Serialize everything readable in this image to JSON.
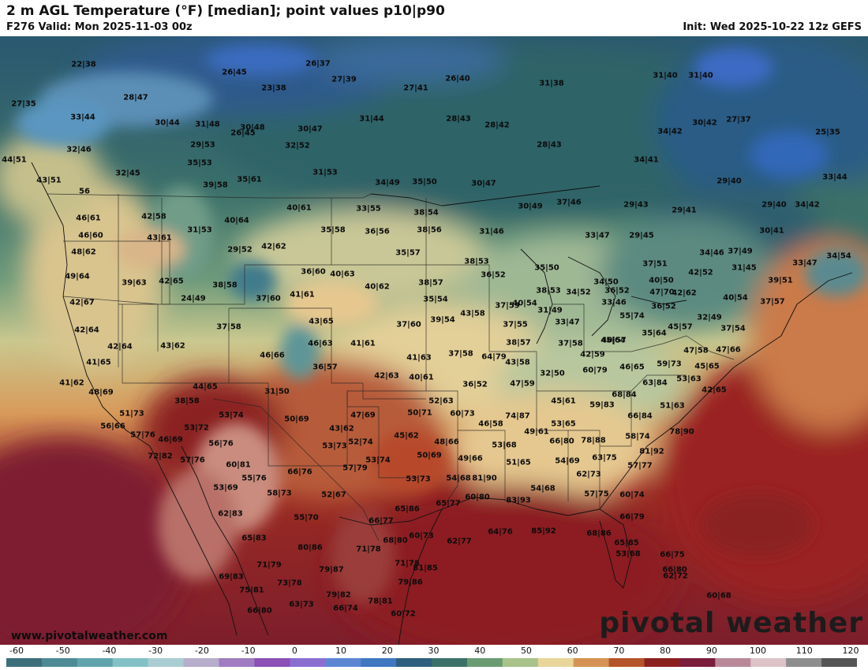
{
  "header": {
    "title": "2 m AGL Temperature (°F) [median]; point values p10|p90",
    "valid": "F276 Valid: Mon 2025-11-03 00z",
    "init": "Init: Wed 2025-10-22 12z GEFS"
  },
  "watermark_url": "www.pivotalweather.com",
  "brand": "pivotal weather",
  "colorbar": {
    "ticks": [
      "-60",
      "-50",
      "-40",
      "-30",
      "-20",
      "-10",
      "0",
      "10",
      "20",
      "30",
      "40",
      "50",
      "60",
      "70",
      "80",
      "90",
      "100",
      "110",
      "120"
    ],
    "colors": [
      "#3d6f7b",
      "#4e8a96",
      "#5fa4ad",
      "#84c1c6",
      "#aacdd3",
      "#b6aecb",
      "#a07cc0",
      "#8b4fb5",
      "#8a6fd0",
      "#5d87d4",
      "#3f78c0",
      "#2f5f7f",
      "#3a7068",
      "#6b9b73",
      "#a8c28a",
      "#e7d59a",
      "#d49355",
      "#b5542a",
      "#8b2020",
      "#7a1e3c",
      "#b9899a",
      "#dcc3c8",
      "#8e8e8e",
      "#555555"
    ]
  },
  "points": [
    {
      "text": "22|38"
    },
    {
      "text": "26|45"
    },
    {
      "text": "26|37"
    },
    {
      "text": "27|39"
    },
    {
      "text": "26|40"
    },
    {
      "text": "31|38"
    },
    {
      "text": "31|40"
    },
    {
      "text": "31|40"
    },
    {
      "text": "27|35"
    },
    {
      "text": "28|47"
    },
    {
      "text": "23|38"
    },
    {
      "text": "27|41"
    },
    {
      "text": "33|44"
    },
    {
      "text": "30|44"
    },
    {
      "text": "31|48"
    },
    {
      "text": "30|48"
    },
    {
      "text": "30|47"
    },
    {
      "text": "31|44"
    },
    {
      "text": "28|43"
    },
    {
      "text": "28|42"
    },
    {
      "text": "30|42"
    },
    {
      "text": "27|37"
    },
    {
      "text": "34|42"
    },
    {
      "text": "25|35"
    },
    {
      "text": "32|46"
    },
    {
      "text": "29|53"
    },
    {
      "text": "32|52"
    },
    {
      "text": "26|45"
    },
    {
      "text": "28|43"
    },
    {
      "text": "44|51"
    },
    {
      "text": "35|53"
    },
    {
      "text": "34|41"
    },
    {
      "text": "32|45"
    },
    {
      "text": "31|53"
    },
    {
      "text": "43|51"
    },
    {
      "text": "39|58"
    },
    {
      "text": "35|61"
    },
    {
      "text": "34|49"
    },
    {
      "text": "35|50"
    },
    {
      "text": "30|47"
    },
    {
      "text": "29|40"
    },
    {
      "text": "33|44"
    },
    {
      "text": "56"
    },
    {
      "text": "40|61"
    },
    {
      "text": "33|55"
    },
    {
      "text": "38|54"
    },
    {
      "text": "30|49"
    },
    {
      "text": "37|46"
    },
    {
      "text": "29|43"
    },
    {
      "text": "29|41"
    },
    {
      "text": "29|40"
    },
    {
      "text": "34|42"
    },
    {
      "text": "46|61"
    },
    {
      "text": "42|58"
    },
    {
      "text": "40|64"
    },
    {
      "text": "35|58"
    },
    {
      "text": "36|56"
    },
    {
      "text": "38|56"
    },
    {
      "text": "31|46"
    },
    {
      "text": "30|41"
    },
    {
      "text": "46|60"
    },
    {
      "text": "43|61"
    },
    {
      "text": "31|53"
    },
    {
      "text": "33|47"
    },
    {
      "text": "29|45"
    },
    {
      "text": "48|62"
    },
    {
      "text": "29|52"
    },
    {
      "text": "42|62"
    },
    {
      "text": "35|57"
    },
    {
      "text": "34|46"
    },
    {
      "text": "37|49"
    },
    {
      "text": "34|54"
    },
    {
      "text": "33|47"
    },
    {
      "text": "38|53"
    },
    {
      "text": "37|51"
    },
    {
      "text": "42|52"
    },
    {
      "text": "31|45"
    },
    {
      "text": "49|64"
    },
    {
      "text": "39|63"
    },
    {
      "text": "42|65"
    },
    {
      "text": "36|60"
    },
    {
      "text": "40|63"
    },
    {
      "text": "35|50"
    },
    {
      "text": "36|52"
    },
    {
      "text": "40|50"
    },
    {
      "text": "39|51"
    },
    {
      "text": "38|58"
    },
    {
      "text": "40|62"
    },
    {
      "text": "38|57"
    },
    {
      "text": "38|53"
    },
    {
      "text": "34|52"
    },
    {
      "text": "34|50"
    },
    {
      "text": "36|52"
    },
    {
      "text": "47|70"
    },
    {
      "text": "42|67"
    },
    {
      "text": "24|49"
    },
    {
      "text": "37|60"
    },
    {
      "text": "41|61"
    },
    {
      "text": "35|54"
    },
    {
      "text": "40|54"
    },
    {
      "text": "33|46"
    },
    {
      "text": "40|54"
    },
    {
      "text": "37|57"
    },
    {
      "text": "37|59"
    },
    {
      "text": "43|58"
    },
    {
      "text": "31|49"
    },
    {
      "text": "36|52"
    },
    {
      "text": "42|62"
    },
    {
      "text": "39|54"
    },
    {
      "text": "55|74"
    },
    {
      "text": "42|64"
    },
    {
      "text": "37|58"
    },
    {
      "text": "43|65"
    },
    {
      "text": "37|60"
    },
    {
      "text": "37|55"
    },
    {
      "text": "33|47"
    },
    {
      "text": "32|49"
    },
    {
      "text": "45|57"
    },
    {
      "text": "37|54"
    },
    {
      "text": "35|64"
    },
    {
      "text": "42|64"
    },
    {
      "text": "43|62"
    },
    {
      "text": "46|63"
    },
    {
      "text": "41|61"
    },
    {
      "text": "38|57"
    },
    {
      "text": "37|58"
    },
    {
      "text": "40|57"
    },
    {
      "text": "42|59"
    },
    {
      "text": "47|58"
    },
    {
      "text": "47|66"
    },
    {
      "text": "46|66"
    },
    {
      "text": "41|63"
    },
    {
      "text": "37|58"
    },
    {
      "text": "64|79"
    },
    {
      "text": "45|64"
    },
    {
      "text": "41|65"
    },
    {
      "text": "36|57"
    },
    {
      "text": "43|58"
    },
    {
      "text": "46|65"
    },
    {
      "text": "45|65"
    },
    {
      "text": "42|63"
    },
    {
      "text": "40|61"
    },
    {
      "text": "32|50"
    },
    {
      "text": "60|79"
    },
    {
      "text": "59|73"
    },
    {
      "text": "41|62"
    },
    {
      "text": "44|65"
    },
    {
      "text": "36|52"
    },
    {
      "text": "47|59"
    },
    {
      "text": "63|84"
    },
    {
      "text": "53|63"
    },
    {
      "text": "48|69"
    },
    {
      "text": "31|50"
    },
    {
      "text": "52|63"
    },
    {
      "text": "68|84"
    },
    {
      "text": "42|65"
    },
    {
      "text": "38|58"
    },
    {
      "text": "45|61"
    },
    {
      "text": "59|83"
    },
    {
      "text": "51|63"
    },
    {
      "text": "51|73"
    },
    {
      "text": "53|74"
    },
    {
      "text": "47|69"
    },
    {
      "text": "50|71"
    },
    {
      "text": "60|73"
    },
    {
      "text": "74|87"
    },
    {
      "text": "56|66"
    },
    {
      "text": "53|72"
    },
    {
      "text": "50|69"
    },
    {
      "text": "43|62"
    },
    {
      "text": "46|58"
    },
    {
      "text": "53|65"
    },
    {
      "text": "66|84"
    },
    {
      "text": "78|90"
    },
    {
      "text": "57|76"
    },
    {
      "text": "46|69"
    },
    {
      "text": "45|62"
    },
    {
      "text": "49|61"
    },
    {
      "text": "78|88"
    },
    {
      "text": "58|74"
    },
    {
      "text": "56|76"
    },
    {
      "text": "53|73"
    },
    {
      "text": "52|74"
    },
    {
      "text": "48|66"
    },
    {
      "text": "53|68"
    },
    {
      "text": "66|80"
    },
    {
      "text": "81|92"
    },
    {
      "text": "72|82"
    },
    {
      "text": "57|76"
    },
    {
      "text": "60|81"
    },
    {
      "text": "53|74"
    },
    {
      "text": "50|69"
    },
    {
      "text": "49|66"
    },
    {
      "text": "51|65"
    },
    {
      "text": "54|69"
    },
    {
      "text": "63|75"
    },
    {
      "text": "57|77"
    },
    {
      "text": "66|76"
    },
    {
      "text": "57|79"
    },
    {
      "text": "55|76"
    },
    {
      "text": "53|73"
    },
    {
      "text": "54|68"
    },
    {
      "text": "81|90"
    },
    {
      "text": "62|73"
    },
    {
      "text": "53|69"
    },
    {
      "text": "58|73"
    },
    {
      "text": "52|67"
    },
    {
      "text": "54|68"
    },
    {
      "text": "57|75"
    },
    {
      "text": "60|74"
    },
    {
      "text": "60|80"
    },
    {
      "text": "83|93"
    },
    {
      "text": "65|77"
    },
    {
      "text": "62|83"
    },
    {
      "text": "55|70"
    },
    {
      "text": "65|86"
    },
    {
      "text": "66|79"
    },
    {
      "text": "66|77"
    },
    {
      "text": "64|76"
    },
    {
      "text": "85|92"
    },
    {
      "text": "68|86"
    },
    {
      "text": "65|83"
    },
    {
      "text": "68|80"
    },
    {
      "text": "60|73"
    },
    {
      "text": "62|77"
    },
    {
      "text": "65|85"
    },
    {
      "text": "80|86"
    },
    {
      "text": "71|78"
    },
    {
      "text": "71|79"
    },
    {
      "text": "71|78"
    },
    {
      "text": "66|75"
    },
    {
      "text": "66|80"
    },
    {
      "text": "53|68"
    },
    {
      "text": "79|87"
    },
    {
      "text": "81|85"
    },
    {
      "text": "69|83"
    },
    {
      "text": "73|78"
    },
    {
      "text": "79|86"
    },
    {
      "text": "62|72"
    },
    {
      "text": "75|81"
    },
    {
      "text": "79|82"
    },
    {
      "text": "63|73"
    },
    {
      "text": "78|81"
    },
    {
      "text": "60|68"
    },
    {
      "text": "66|80"
    },
    {
      "text": "66|74"
    },
    {
      "text": "60|72"
    }
  ]
}
